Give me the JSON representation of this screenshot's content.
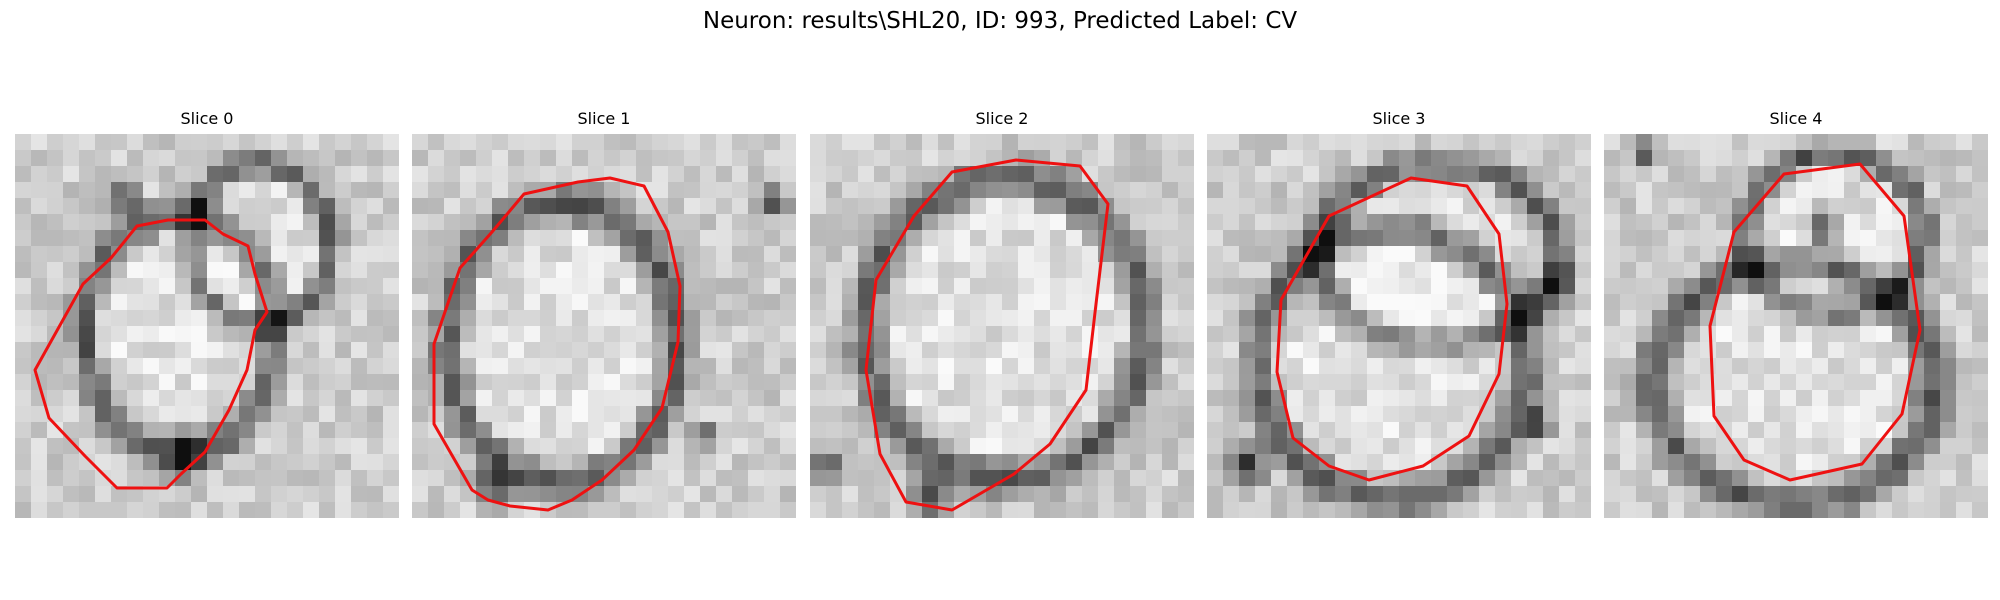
{
  "figure": {
    "title": "Neuron: results\\SHL20, ID: 993, Predicted Label: CV"
  },
  "contour_color": "#ee1111",
  "slices": [
    {
      "label": "Slice 0"
    },
    {
      "label": "Slice 1"
    },
    {
      "label": "Slice 2"
    },
    {
      "label": "Slice 3"
    },
    {
      "label": "Slice 4"
    }
  ]
}
